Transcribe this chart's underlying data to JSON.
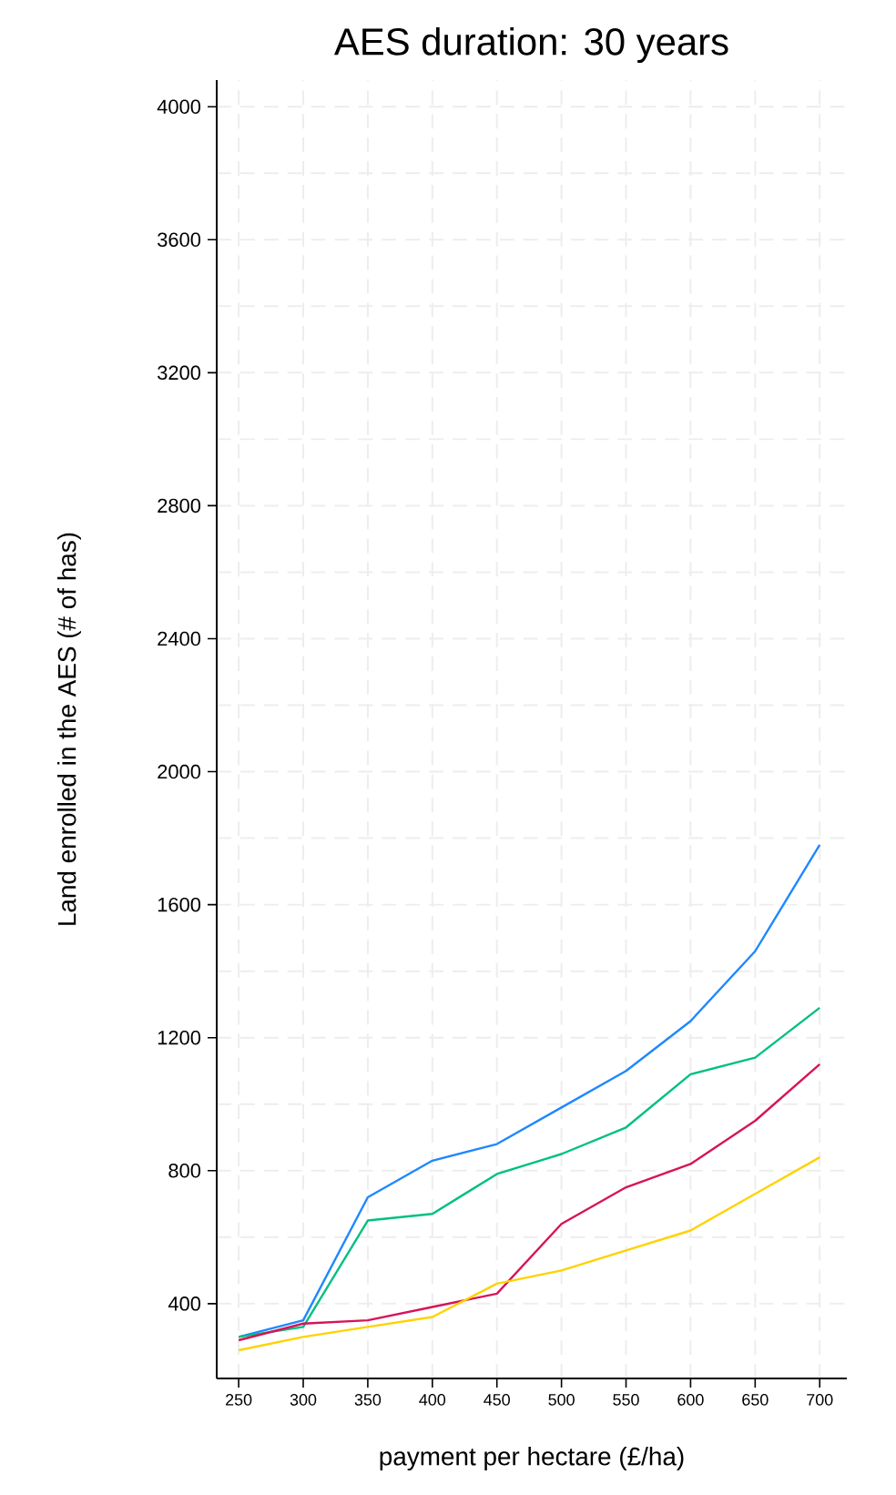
{
  "chart_data": {
    "type": "line",
    "title": "AES duration: 30 years",
    "xlabel": "payment per hectare (£/ha)",
    "ylabel": "Land enrolled in the AES (# of has)",
    "x": [
      250,
      300,
      350,
      400,
      450,
      500,
      550,
      600,
      650,
      700
    ],
    "series": [
      {
        "color": "#1e88ff",
        "values": [
          300,
          350,
          720,
          830,
          880,
          990,
          1100,
          1250,
          1460,
          1780
        ]
      },
      {
        "color": "#00c07f",
        "values": [
          300,
          330,
          650,
          670,
          790,
          850,
          930,
          1090,
          1140,
          1290
        ]
      },
      {
        "color": "#d6145a",
        "values": [
          290,
          340,
          350,
          390,
          430,
          640,
          750,
          820,
          950,
          1120
        ]
      },
      {
        "color": "#ffd200",
        "values": [
          260,
          300,
          330,
          360,
          460,
          500,
          560,
          620,
          730,
          840
        ]
      }
    ],
    "xlim": [
      233,
      721
    ],
    "ylim": [
      175,
      4080
    ],
    "xticks": [
      250,
      300,
      350,
      400,
      450,
      500,
      550,
      600,
      650,
      700
    ],
    "yticks": [
      400,
      800,
      1200,
      1600,
      2000,
      2400,
      2800,
      3200,
      3600,
      4000
    ],
    "grid": true,
    "marker": "none",
    "line_style": "solid"
  }
}
